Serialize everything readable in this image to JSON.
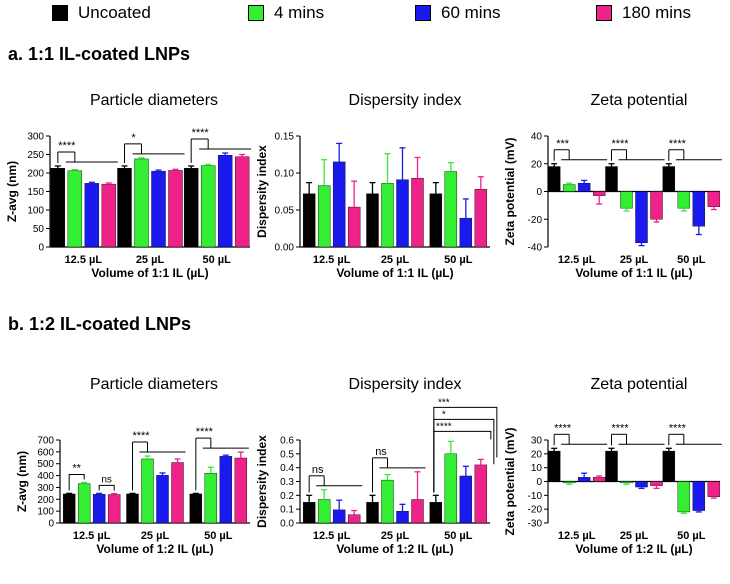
{
  "legend": [
    {
      "label": "Uncoated",
      "color": "#000000"
    },
    {
      "label": "4 mins",
      "color": "#33ee33"
    },
    {
      "label": "60 mins",
      "color": "#1a1aee"
    },
    {
      "label": "180 mins",
      "color": "#ee2288"
    }
  ],
  "section_a": {
    "title": "a. 1:1 IL-coated LNPs"
  },
  "section_b": {
    "title": "b. 1:2 IL-coated LNPs"
  },
  "chart_data": [
    {
      "id": "a1",
      "type": "bar",
      "title": "Particle diameters",
      "xlabel": "Volume of 1:1 IL (µL)",
      "ylabel": "Z-avg (nm)",
      "ylim": [
        0,
        300
      ],
      "yticks": [
        0,
        50,
        100,
        150,
        200,
        250,
        300
      ],
      "categories": [
        "12.5 µL",
        "25 µL",
        "50 µL"
      ],
      "series": [
        {
          "name": "Uncoated",
          "values": [
            213,
            213,
            213
          ],
          "errors": [
            6,
            6,
            6
          ]
        },
        {
          "name": "4 mins",
          "values": [
            206,
            238,
            220
          ],
          "errors": [
            3,
            3,
            3
          ]
        },
        {
          "name": "60 mins",
          "values": [
            172,
            205,
            248
          ],
          "errors": [
            3,
            3,
            6
          ]
        },
        {
          "name": "180 mins",
          "values": [
            170,
            207,
            244
          ],
          "errors": [
            3,
            3,
            6
          ]
        }
      ],
      "annotations": [
        {
          "category": 0,
          "text": "****",
          "type": "fan"
        },
        {
          "category": 1,
          "text": "*",
          "type": "fan"
        },
        {
          "category": 2,
          "text": "****",
          "type": "fan"
        }
      ]
    },
    {
      "id": "a2",
      "type": "bar",
      "title": "Dispersity index",
      "xlabel": "Volume of 1:1 IL (µL)",
      "ylabel": "Dispersity index",
      "ylim": [
        0,
        0.15
      ],
      "yticks": [
        0.0,
        0.05,
        0.1,
        0.15
      ],
      "categories": [
        "12.5 µL",
        "25 µL",
        "50 µL"
      ],
      "series": [
        {
          "name": "Uncoated",
          "values": [
            0.072,
            0.072,
            0.072
          ],
          "errors": [
            0.015,
            0.015,
            0.015
          ]
        },
        {
          "name": "4 mins",
          "values": [
            0.083,
            0.086,
            0.102
          ],
          "errors": [
            0.035,
            0.04,
            0.012
          ]
        },
        {
          "name": "60 mins",
          "values": [
            0.115,
            0.091,
            0.039
          ],
          "errors": [
            0.025,
            0.043,
            0.026
          ]
        },
        {
          "name": "180 mins",
          "values": [
            0.054,
            0.093,
            0.078
          ],
          "errors": [
            0.035,
            0.028,
            0.017
          ]
        }
      ],
      "annotations": []
    },
    {
      "id": "a3",
      "type": "bar",
      "title": "Zeta potential",
      "xlabel": "Volume of 1:1 IL (µL)",
      "ylabel": "Zeta potential (mV)",
      "ylim": [
        -40,
        40
      ],
      "yticks": [
        -40,
        -20,
        0,
        20,
        40
      ],
      "categories": [
        "12.5 µL",
        "25 µL",
        "50 µL"
      ],
      "series": [
        {
          "name": "Uncoated",
          "values": [
            18,
            18,
            18
          ],
          "errors": [
            2,
            2,
            2
          ]
        },
        {
          "name": "4 mins",
          "values": [
            5,
            -12,
            -12
          ],
          "errors": [
            1,
            2,
            2
          ]
        },
        {
          "name": "60 mins",
          "values": [
            6,
            -37,
            -25
          ],
          "errors": [
            2,
            2,
            6
          ]
        },
        {
          "name": "180 mins",
          "values": [
            -3,
            -20,
            -11
          ],
          "errors": [
            6,
            2,
            2
          ]
        }
      ],
      "annotations": [
        {
          "category": 0,
          "text": "***",
          "type": "fan"
        },
        {
          "category": 1,
          "text": "****",
          "type": "fan"
        },
        {
          "category": 2,
          "text": "****",
          "type": "fan"
        }
      ]
    },
    {
      "id": "b1",
      "type": "bar",
      "title": "Particle diameters",
      "xlabel": "Volume of 1:2 IL (µL)",
      "ylabel": "Z-avg (nm)",
      "ylim": [
        0,
        700
      ],
      "yticks": [
        0,
        100,
        200,
        300,
        400,
        500,
        600,
        700
      ],
      "categories": [
        "12.5 µL",
        "25 µL",
        "50 µL"
      ],
      "series": [
        {
          "name": "Uncoated",
          "values": [
            245,
            245,
            245
          ],
          "errors": [
            5,
            5,
            5
          ]
        },
        {
          "name": "4 mins",
          "values": [
            332,
            540,
            420
          ],
          "errors": [
            10,
            25,
            50
          ]
        },
        {
          "name": "60 mins",
          "values": [
            242,
            402,
            562
          ],
          "errors": [
            8,
            20,
            10
          ]
        },
        {
          "name": "180 mins",
          "values": [
            240,
            510,
            548
          ],
          "errors": [
            8,
            30,
            50
          ]
        }
      ],
      "annotations": [
        {
          "category": 0,
          "text": "**",
          "type": "pair"
        },
        {
          "category": 0,
          "text": "ns",
          "type": "pair2"
        },
        {
          "category": 1,
          "text": "****",
          "type": "fan"
        },
        {
          "category": 2,
          "text": "****",
          "type": "fan"
        }
      ]
    },
    {
      "id": "b2",
      "type": "bar",
      "title": "Dispersity index",
      "xlabel": "Volume of 1:2 IL (µL)",
      "ylabel": "Dispersity index",
      "ylim": [
        0,
        0.6
      ],
      "yticks": [
        0.0,
        0.1,
        0.2,
        0.3,
        0.4,
        0.5,
        0.6
      ],
      "categories": [
        "12.5 µL",
        "25 µL",
        "50 µL"
      ],
      "series": [
        {
          "name": "Uncoated",
          "values": [
            0.15,
            0.15,
            0.15
          ],
          "errors": [
            0.05,
            0.05,
            0.05
          ]
        },
        {
          "name": "4 mins",
          "values": [
            0.17,
            0.31,
            0.5
          ],
          "errors": [
            0.07,
            0.04,
            0.09
          ]
        },
        {
          "name": "60 mins",
          "values": [
            0.095,
            0.085,
            0.34
          ],
          "errors": [
            0.07,
            0.05,
            0.07
          ]
        },
        {
          "name": "180 mins",
          "values": [
            0.06,
            0.17,
            0.42
          ],
          "errors": [
            0.03,
            0.2,
            0.04
          ]
        }
      ],
      "annotations": [
        {
          "category": 0,
          "text": "ns",
          "type": "fan"
        },
        {
          "category": 1,
          "text": "ns",
          "type": "fan"
        },
        {
          "category": 2,
          "text": "****",
          "type": "step1"
        },
        {
          "category": 2,
          "text": "*",
          "type": "step2"
        },
        {
          "category": 2,
          "text": "***",
          "type": "step3"
        }
      ]
    },
    {
      "id": "b3",
      "type": "bar",
      "title": "Zeta potential",
      "xlabel": "Volume of 1:2 IL (µL)",
      "ylabel": "Zeta potential (mV)",
      "ylim": [
        -30,
        30
      ],
      "yticks": [
        -30,
        -20,
        -10,
        0,
        10,
        20,
        30
      ],
      "categories": [
        "12.5 µL",
        "25 µL",
        "50 µL"
      ],
      "series": [
        {
          "name": "Uncoated",
          "values": [
            22,
            22,
            22
          ],
          "errors": [
            2,
            2,
            2
          ]
        },
        {
          "name": "4 mins",
          "values": [
            -1,
            -1,
            -22
          ],
          "errors": [
            1,
            1,
            1
          ]
        },
        {
          "name": "60 mins",
          "values": [
            3,
            -4,
            -21
          ],
          "errors": [
            3,
            1,
            1
          ]
        },
        {
          "name": "180 mins",
          "values": [
            3,
            -3,
            -11
          ],
          "errors": [
            1,
            2,
            1
          ]
        }
      ],
      "annotations": [
        {
          "category": 0,
          "text": "****",
          "type": "fan"
        },
        {
          "category": 1,
          "text": "****",
          "type": "fan"
        },
        {
          "category": 2,
          "text": "****",
          "type": "fan"
        }
      ]
    }
  ]
}
